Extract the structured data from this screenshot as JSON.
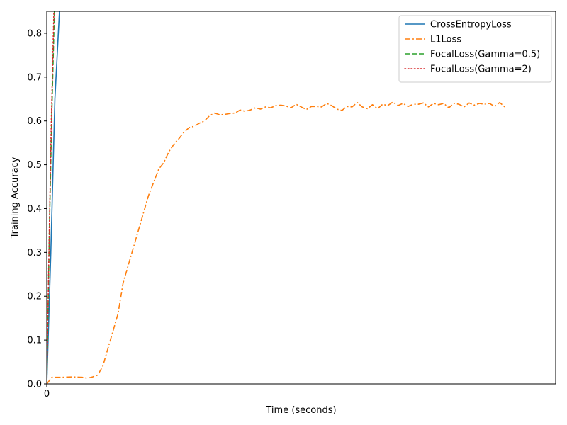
{
  "chart_data": {
    "type": "line",
    "title": "",
    "xlabel": "Time (seconds)",
    "ylabel": "Training Accuracy",
    "xlim": [
      0,
      100
    ],
    "ylim": [
      0,
      0.85
    ],
    "x_ticks": [
      {
        "value": 0,
        "label": "0"
      }
    ],
    "y_ticks": [
      {
        "value": 0.0,
        "label": "0.0"
      },
      {
        "value": 0.1,
        "label": "0.1"
      },
      {
        "value": 0.2,
        "label": "0.2"
      },
      {
        "value": 0.3,
        "label": "0.3"
      },
      {
        "value": 0.4,
        "label": "0.4"
      },
      {
        "value": 0.5,
        "label": "0.5"
      },
      {
        "value": 0.6,
        "label": "0.6"
      },
      {
        "value": 0.7,
        "label": "0.7"
      },
      {
        "value": 0.8,
        "label": "0.8"
      }
    ],
    "grid": false,
    "legend_position": "top-right",
    "series": [
      {
        "name": "CrossEntropyLoss",
        "color": "#1f77b4",
        "style": "solid",
        "points": [
          [
            0,
            0.0
          ],
          [
            0.8,
            0.3
          ],
          [
            1.6,
            0.65
          ],
          [
            2.5,
            0.85
          ]
        ]
      },
      {
        "name": "L1Loss",
        "color": "#ff7f0e",
        "style": "dashdot",
        "points": [
          [
            0,
            0.0
          ],
          [
            1,
            0.015
          ],
          [
            3,
            0.015
          ],
          [
            5,
            0.016
          ],
          [
            7,
            0.015
          ],
          [
            8,
            0.013
          ],
          [
            9,
            0.016
          ],
          [
            10,
            0.02
          ],
          [
            11,
            0.04
          ],
          [
            12,
            0.08
          ],
          [
            13,
            0.12
          ],
          [
            14,
            0.16
          ],
          [
            15,
            0.23
          ],
          [
            16,
            0.27
          ],
          [
            17,
            0.31
          ],
          [
            18,
            0.35
          ],
          [
            19,
            0.39
          ],
          [
            20,
            0.43
          ],
          [
            21,
            0.46
          ],
          [
            22,
            0.49
          ],
          [
            23,
            0.505
          ],
          [
            24,
            0.53
          ],
          [
            25,
            0.547
          ],
          [
            26,
            0.56
          ],
          [
            27,
            0.575
          ],
          [
            28,
            0.585
          ],
          [
            29,
            0.588
          ],
          [
            30,
            0.595
          ],
          [
            31,
            0.6
          ],
          [
            32,
            0.612
          ],
          [
            33,
            0.618
          ],
          [
            34,
            0.614
          ],
          [
            35,
            0.615
          ],
          [
            36,
            0.617
          ],
          [
            37,
            0.618
          ],
          [
            38,
            0.625
          ],
          [
            39,
            0.622
          ],
          [
            40,
            0.625
          ],
          [
            41,
            0.63
          ],
          [
            42,
            0.627
          ],
          [
            43,
            0.632
          ],
          [
            44,
            0.63
          ],
          [
            45,
            0.635
          ],
          [
            46,
            0.636
          ],
          [
            47,
            0.634
          ],
          [
            48,
            0.63
          ],
          [
            49,
            0.638
          ],
          [
            50,
            0.632
          ],
          [
            51,
            0.626
          ],
          [
            52,
            0.633
          ],
          [
            53,
            0.633
          ],
          [
            54,
            0.632
          ],
          [
            55,
            0.64
          ],
          [
            56,
            0.635
          ],
          [
            57,
            0.627
          ],
          [
            58,
            0.624
          ],
          [
            59,
            0.633
          ],
          [
            60,
            0.632
          ],
          [
            61,
            0.642
          ],
          [
            62,
            0.632
          ],
          [
            63,
            0.628
          ],
          [
            64,
            0.637
          ],
          [
            65,
            0.628
          ],
          [
            66,
            0.638
          ],
          [
            67,
            0.635
          ],
          [
            68,
            0.643
          ],
          [
            69,
            0.635
          ],
          [
            70,
            0.64
          ],
          [
            71,
            0.633
          ],
          [
            72,
            0.638
          ],
          [
            73,
            0.638
          ],
          [
            74,
            0.641
          ],
          [
            75,
            0.632
          ],
          [
            76,
            0.64
          ],
          [
            77,
            0.637
          ],
          [
            78,
            0.64
          ],
          [
            79,
            0.63
          ],
          [
            80,
            0.64
          ],
          [
            81,
            0.638
          ],
          [
            82,
            0.632
          ],
          [
            83,
            0.641
          ],
          [
            84,
            0.636
          ],
          [
            85,
            0.64
          ],
          [
            86,
            0.638
          ],
          [
            87,
            0.64
          ],
          [
            88,
            0.633
          ],
          [
            89,
            0.642
          ],
          [
            90,
            0.632
          ]
        ]
      },
      {
        "name": "FocalLoss(Gamma=0.5)",
        "color": "#2ca02c",
        "style": "dashed",
        "points": [
          [
            0,
            0.0
          ],
          [
            0.6,
            0.4
          ],
          [
            1.0,
            0.62
          ],
          [
            1.5,
            0.85
          ]
        ]
      },
      {
        "name": "FocalLoss(Gamma=2)",
        "color": "#d62728",
        "style": "dotted",
        "points": [
          [
            0,
            0.0
          ],
          [
            0.5,
            0.35
          ],
          [
            0.9,
            0.6
          ],
          [
            1.4,
            0.85
          ]
        ]
      }
    ]
  }
}
